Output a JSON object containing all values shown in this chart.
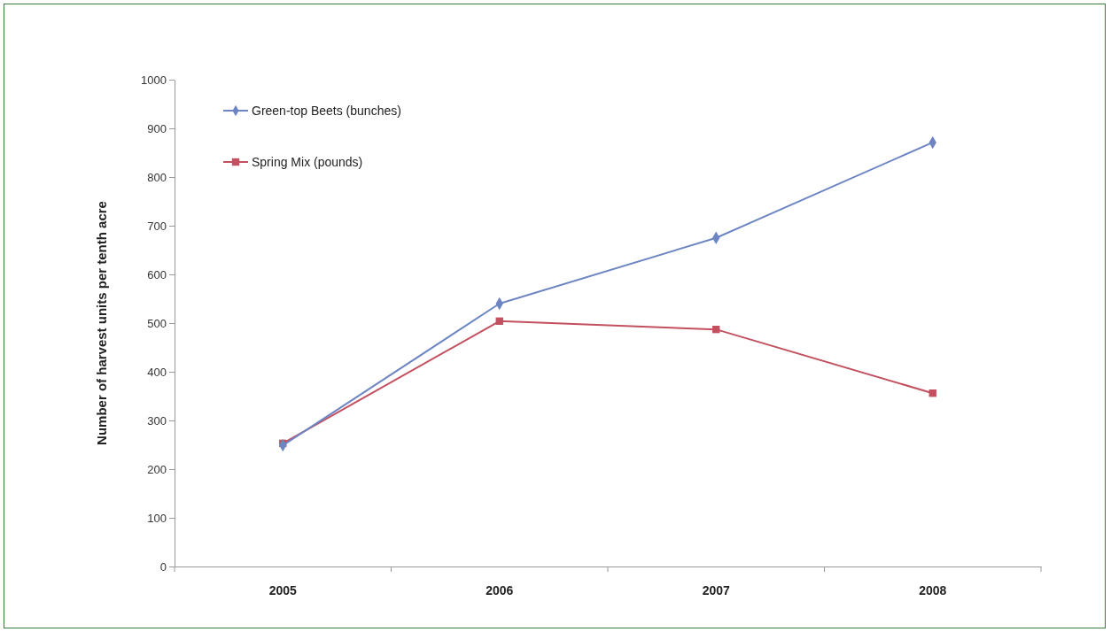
{
  "chart_data": {
    "type": "line",
    "ylabel": "Number of harvest units per tenth acre",
    "categories": [
      "2005",
      "2006",
      "2007",
      "2008"
    ],
    "series": [
      {
        "name": "Green-top Beets (bunches)",
        "color": "#6d86c3",
        "marker": "diamond",
        "values": [
          249,
          540,
          675,
          871
        ]
      },
      {
        "name": "Spring Mix (pounds)",
        "color": "#c3505f",
        "marker": "square",
        "values": [
          253,
          504,
          487,
          356
        ]
      }
    ],
    "ylim": [
      0,
      1000
    ],
    "yticks": [
      0,
      100,
      200,
      300,
      400,
      500,
      600,
      700,
      800,
      900,
      1000
    ],
    "legend": "top left",
    "grid": false
  }
}
